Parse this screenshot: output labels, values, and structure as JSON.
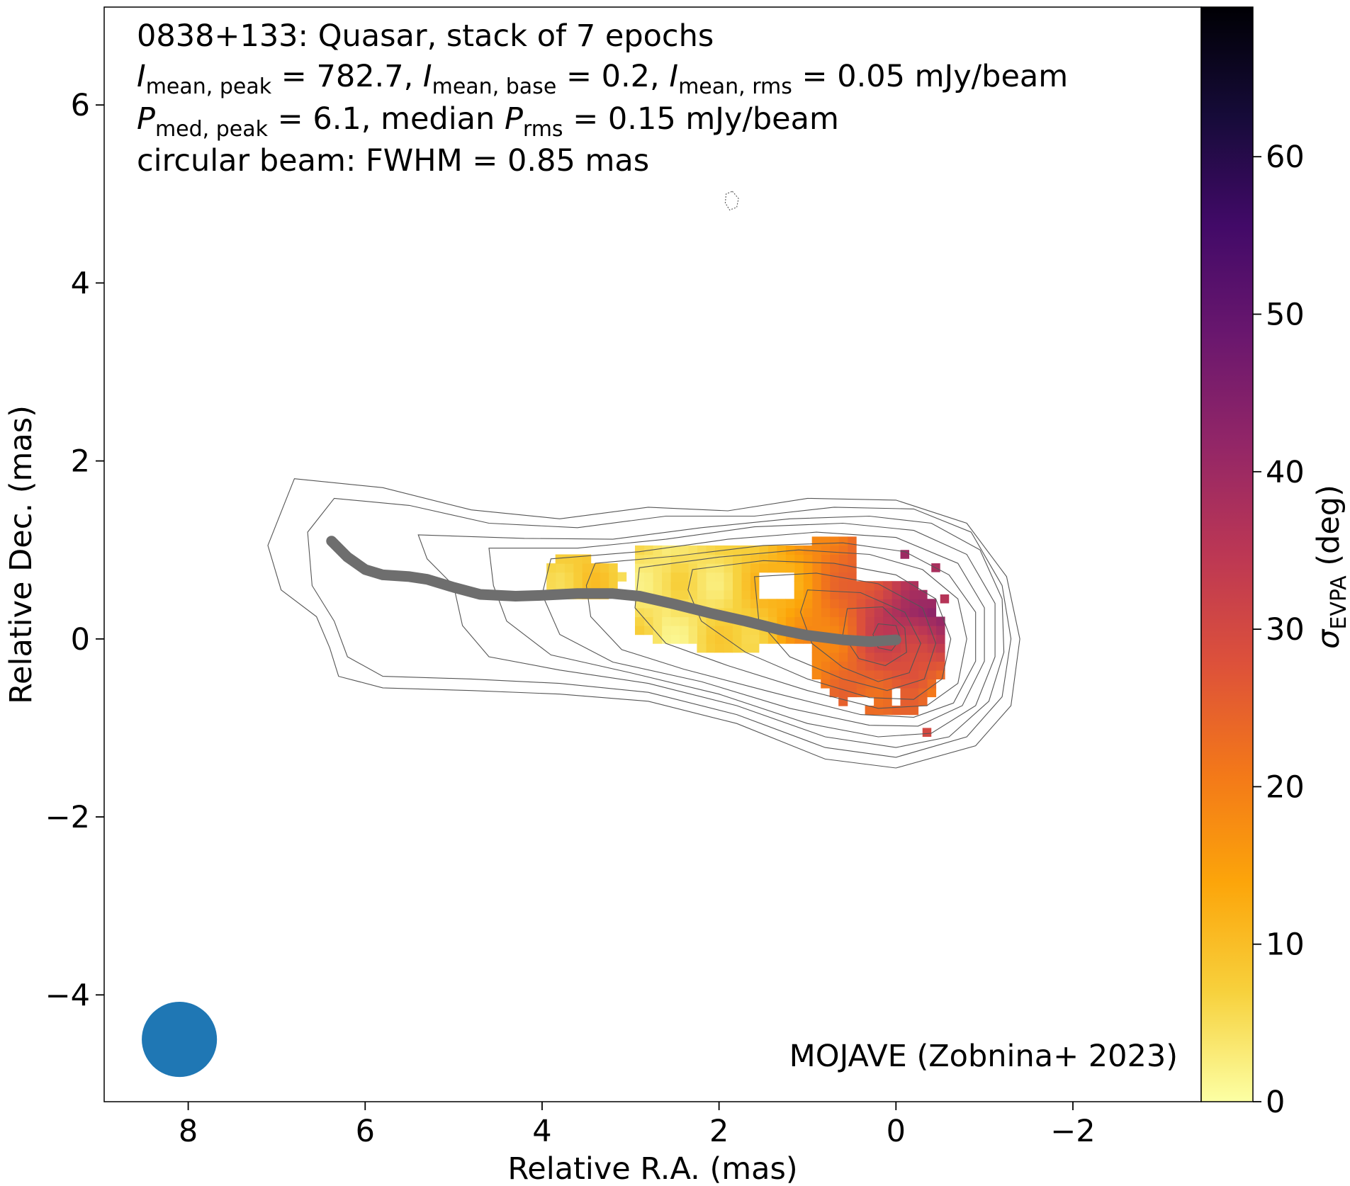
{
  "chart_data": {
    "type": "heatmap",
    "source": "0838+133",
    "source_class": "Quasar",
    "annotation": {
      "line1": "0838+133: Quasar, stack of 7 epochs",
      "line2": {
        "i_sym": "I",
        "peak_sub": "mean, peak",
        "peak_val": " = 782.7, ",
        "base_sub": "mean, base",
        "base_val": " = 0.2, ",
        "rms_sub": "mean, rms",
        "rms_val": " = 0.05 mJy/beam"
      },
      "line3": {
        "p_sym": "P",
        "peak_sub": "med, peak",
        "peak_val": " = 6.1, median ",
        "rms_sub": "rms",
        "rms_val": " = 0.15 mJy/beam"
      },
      "line4": "circular beam: FWHM = 0.85 mas"
    },
    "values": {
      "epochs": 7,
      "I_mean_peak": 782.7,
      "I_mean_base": 0.2,
      "I_mean_rms": 0.05,
      "P_med_peak": 6.1,
      "P_rms_median": 0.15,
      "flux_unit": "mJy/beam",
      "beam_fwhm_mas": 0.85
    },
    "credit": "MOJAVE (Zobnina+ 2023)",
    "xlabel": "Relative R.A. (mas)",
    "ylabel": "Relative Dec. (mas)",
    "xlim": [
      8.95,
      -3.45
    ],
    "ylim": [
      -5.2,
      7.1
    ],
    "x_ticks": [
      8,
      6,
      4,
      2,
      0,
      -2
    ],
    "x_tick_labels": [
      "8",
      "6",
      "4",
      "2",
      "0",
      "−2"
    ],
    "y_ticks": [
      6,
      4,
      2,
      0,
      -2,
      -4
    ],
    "y_tick_labels": [
      "6",
      "4",
      "2",
      "0",
      "−2",
      "−4"
    ],
    "colorbar": {
      "label_sym": "σ",
      "label_sub": "EVPA",
      "label_rest": " (deg)",
      "min": 0,
      "max": 69.5,
      "ticks": [
        0,
        10,
        20,
        30,
        40,
        50,
        60
      ],
      "tick_labels": [
        "0",
        "10",
        "20",
        "30",
        "40",
        "50",
        "60"
      ],
      "colormap": "inferno_r",
      "stops": [
        "#fcffa4",
        "#f7d13d",
        "#fca50a",
        "#f37819",
        "#dd513a",
        "#bc3754",
        "#932667",
        "#6a176e",
        "#420a68",
        "#160b39",
        "#000004"
      ]
    },
    "beam": {
      "x": 8.1,
      "y": -4.5,
      "fwhm": 0.85,
      "color": "#1f77b4"
    },
    "ridgeline": {
      "color": "#6e6e6e",
      "points": [
        [
          6.38,
          1.1
        ],
        [
          6.2,
          0.92
        ],
        [
          6.0,
          0.78
        ],
        [
          5.8,
          0.72
        ],
        [
          5.5,
          0.7
        ],
        [
          5.3,
          0.67
        ],
        [
          5.0,
          0.58
        ],
        [
          4.7,
          0.5
        ],
        [
          4.3,
          0.48
        ],
        [
          4.0,
          0.49
        ],
        [
          3.6,
          0.51
        ],
        [
          3.2,
          0.51
        ],
        [
          2.9,
          0.48
        ],
        [
          2.5,
          0.39
        ],
        [
          2.1,
          0.29
        ],
        [
          1.7,
          0.2
        ],
        [
          1.3,
          0.1
        ],
        [
          1.0,
          0.04
        ],
        [
          0.6,
          -0.01
        ],
        [
          0.3,
          -0.03
        ],
        [
          0.0,
          -0.01
        ]
      ]
    },
    "contours": [
      [
        [
          6.8,
          1.8
        ],
        [
          5.8,
          1.7
        ],
        [
          4.8,
          1.45
        ],
        [
          3.8,
          1.35
        ],
        [
          2.8,
          1.48
        ],
        [
          1.9,
          1.44
        ],
        [
          1.0,
          1.58
        ],
        [
          0.0,
          1.56
        ],
        [
          -0.8,
          1.3
        ],
        [
          -1.25,
          0.7
        ],
        [
          -1.4,
          0.0
        ],
        [
          -1.3,
          -0.75
        ],
        [
          -0.9,
          -1.2
        ],
        [
          0.0,
          -1.45
        ],
        [
          0.8,
          -1.35
        ],
        [
          1.8,
          -0.95
        ],
        [
          2.8,
          -0.7
        ],
        [
          3.8,
          -0.62
        ],
        [
          4.8,
          -0.58
        ],
        [
          5.8,
          -0.55
        ],
        [
          6.3,
          -0.42
        ],
        [
          6.4,
          -0.1
        ],
        [
          6.55,
          0.25
        ],
        [
          6.95,
          0.55
        ],
        [
          7.1,
          1.05
        ],
        [
          6.9,
          1.55
        ]
      ],
      [
        [
          6.35,
          1.58
        ],
        [
          5.5,
          1.5
        ],
        [
          4.6,
          1.3
        ],
        [
          3.6,
          1.25
        ],
        [
          2.6,
          1.38
        ],
        [
          1.6,
          1.38
        ],
        [
          0.7,
          1.48
        ],
        [
          -0.2,
          1.46
        ],
        [
          -0.85,
          1.2
        ],
        [
          -1.2,
          0.6
        ],
        [
          -1.3,
          0.0
        ],
        [
          -1.2,
          -0.65
        ],
        [
          -0.8,
          -1.1
        ],
        [
          0.0,
          -1.33
        ],
        [
          0.8,
          -1.22
        ],
        [
          1.8,
          -0.85
        ],
        [
          2.8,
          -0.6
        ],
        [
          3.8,
          -0.5
        ],
        [
          4.8,
          -0.45
        ],
        [
          5.8,
          -0.42
        ],
        [
          6.2,
          -0.2
        ],
        [
          6.35,
          0.2
        ],
        [
          6.6,
          0.6
        ],
        [
          6.65,
          1.2
        ]
      ],
      [
        [
          5.4,
          1.17
        ],
        [
          4.2,
          1.13
        ],
        [
          3.2,
          1.12
        ],
        [
          2.2,
          1.25
        ],
        [
          1.2,
          1.35
        ],
        [
          0.3,
          1.38
        ],
        [
          -0.4,
          1.3
        ],
        [
          -0.95,
          1.0
        ],
        [
          -1.2,
          0.45
        ],
        [
          -1.22,
          -0.15
        ],
        [
          -1.05,
          -0.7
        ],
        [
          -0.6,
          -1.1
        ],
        [
          0.0,
          -1.22
        ],
        [
          0.8,
          -1.1
        ],
        [
          1.8,
          -0.75
        ],
        [
          2.8,
          -0.5
        ],
        [
          3.8,
          -0.35
        ],
        [
          4.6,
          -0.2
        ],
        [
          4.9,
          0.15
        ],
        [
          5.0,
          0.6
        ],
        [
          5.3,
          0.9
        ]
      ],
      [
        [
          4.6,
          1.02
        ],
        [
          3.6,
          1.02
        ],
        [
          2.6,
          1.12
        ],
        [
          1.6,
          1.26
        ],
        [
          0.6,
          1.3
        ],
        [
          -0.2,
          1.22
        ],
        [
          -0.8,
          0.95
        ],
        [
          -1.12,
          0.4
        ],
        [
          -1.12,
          -0.2
        ],
        [
          -0.9,
          -0.75
        ],
        [
          -0.4,
          -1.06
        ],
        [
          0.2,
          -1.1
        ],
        [
          1.0,
          -0.95
        ],
        [
          2.0,
          -0.62
        ],
        [
          3.0,
          -0.38
        ],
        [
          3.9,
          -0.18
        ],
        [
          4.4,
          0.2
        ],
        [
          4.55,
          0.6
        ]
      ],
      [
        [
          3.9,
          0.9
        ],
        [
          2.9,
          0.98
        ],
        [
          1.9,
          1.12
        ],
        [
          0.9,
          1.2
        ],
        [
          0.0,
          1.14
        ],
        [
          -0.7,
          0.85
        ],
        [
          -1.0,
          0.35
        ],
        [
          -1.0,
          -0.25
        ],
        [
          -0.75,
          -0.75
        ],
        [
          -0.25,
          -0.98
        ],
        [
          0.3,
          -0.97
        ],
        [
          1.2,
          -0.78
        ],
        [
          2.2,
          -0.48
        ],
        [
          3.2,
          -0.26
        ],
        [
          3.8,
          0.05
        ],
        [
          4.0,
          0.5
        ]
      ],
      [
        [
          3.4,
          0.85
        ],
        [
          2.5,
          0.93
        ],
        [
          1.5,
          1.05
        ],
        [
          0.6,
          1.08
        ],
        [
          -0.1,
          0.98
        ],
        [
          -0.6,
          0.72
        ],
        [
          -0.9,
          0.3
        ],
        [
          -0.9,
          -0.25
        ],
        [
          -0.65,
          -0.72
        ],
        [
          -0.2,
          -0.88
        ],
        [
          0.4,
          -0.85
        ],
        [
          1.4,
          -0.6
        ],
        [
          2.4,
          -0.34
        ],
        [
          3.1,
          -0.12
        ],
        [
          3.45,
          0.25
        ],
        [
          3.5,
          0.6
        ]
      ],
      [
        [
          2.9,
          0.8
        ],
        [
          2.0,
          0.92
        ],
        [
          1.1,
          1.0
        ],
        [
          0.3,
          0.95
        ],
        [
          -0.3,
          0.78
        ],
        [
          -0.7,
          0.45
        ],
        [
          -0.8,
          0.0
        ],
        [
          -0.7,
          -0.5
        ],
        [
          -0.35,
          -0.75
        ],
        [
          0.2,
          -0.78
        ],
        [
          1.0,
          -0.58
        ],
        [
          1.9,
          -0.3
        ],
        [
          2.6,
          -0.05
        ],
        [
          2.95,
          0.35
        ]
      ],
      [
        [
          2.3,
          0.78
        ],
        [
          1.5,
          0.88
        ],
        [
          0.7,
          0.85
        ],
        [
          0.0,
          0.72
        ],
        [
          -0.45,
          0.45
        ],
        [
          -0.62,
          0.0
        ],
        [
          -0.52,
          -0.45
        ],
        [
          -0.2,
          -0.68
        ],
        [
          0.3,
          -0.66
        ],
        [
          1.0,
          -0.45
        ],
        [
          1.7,
          -0.15
        ],
        [
          2.2,
          0.2
        ],
        [
          2.35,
          0.55
        ]
      ],
      [
        [
          1.6,
          0.7
        ],
        [
          0.9,
          0.74
        ],
        [
          0.2,
          0.62
        ],
        [
          -0.3,
          0.35
        ],
        [
          -0.45,
          -0.05
        ],
        [
          -0.32,
          -0.45
        ],
        [
          0.1,
          -0.58
        ],
        [
          0.6,
          -0.45
        ],
        [
          1.2,
          -0.2
        ],
        [
          1.55,
          0.2
        ]
      ],
      [
        [
          1.0,
          0.55
        ],
        [
          0.4,
          0.52
        ],
        [
          -0.1,
          0.3
        ],
        [
          -0.28,
          -0.05
        ],
        [
          -0.15,
          -0.38
        ],
        [
          0.2,
          -0.48
        ],
        [
          0.6,
          -0.32
        ],
        [
          0.95,
          -0.05
        ],
        [
          1.08,
          0.3
        ]
      ],
      [
        [
          0.55,
          0.34
        ],
        [
          0.15,
          0.36
        ],
        [
          -0.1,
          0.12
        ],
        [
          -0.12,
          -0.15
        ],
        [
          0.12,
          -0.3
        ],
        [
          0.42,
          -0.22
        ],
        [
          0.6,
          0.05
        ]
      ],
      [
        [
          0.2,
          0.17
        ],
        [
          0.0,
          0.15
        ],
        [
          -0.05,
          0.0
        ],
        [
          0.05,
          -0.13
        ],
        [
          0.2,
          -0.1
        ],
        [
          0.26,
          0.05
        ]
      ],
      [
        [
          1.85,
          5.03
        ],
        [
          1.78,
          4.95
        ],
        [
          1.8,
          4.85
        ],
        [
          1.88,
          4.82
        ],
        [
          1.93,
          4.9
        ],
        [
          1.92,
          5.0
        ]
      ]
    ]
  }
}
